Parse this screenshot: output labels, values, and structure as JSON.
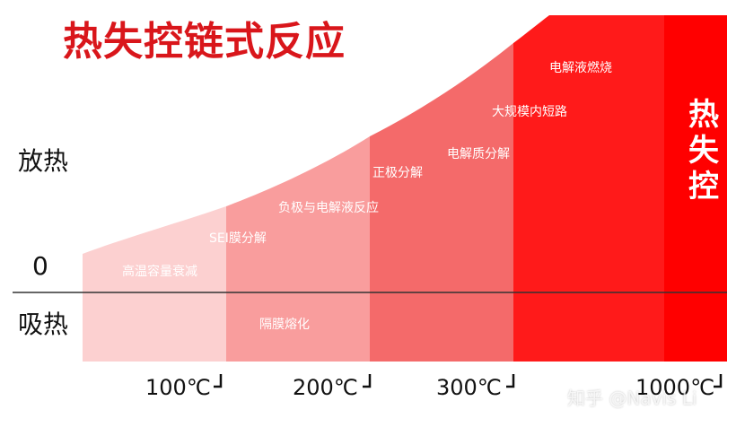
{
  "title": "热失控链式反应",
  "y_axis": {
    "exothermic": "放热",
    "zero": "0",
    "endothermic": "吸热"
  },
  "x_ticks": [
    "100℃",
    "200℃",
    "300℃",
    "1000℃"
  ],
  "events": {
    "capacity_fade": "高温容量衰减",
    "sei_decomposition": "SEI膜分解",
    "separator_melting": "隔膜熔化",
    "anode_electrolyte": "负极与电解液反应",
    "cathode_decomposition": "正极分解",
    "electrolyte_decomposition": "电解质分解",
    "internal_short": "大规模内短路",
    "electrolyte_combustion": "电解液燃烧"
  },
  "runaway_label": [
    "热",
    "失",
    "控"
  ],
  "watermark": "知乎 @Navis Li",
  "colors": {
    "title": "#d9161b",
    "zone1": "#fcd0d0",
    "zone2": "#f99d9d",
    "zone3": "#f46a6a",
    "zone4": "#ff1a1a",
    "zone5": "#ff0000",
    "axis": "#333333"
  }
}
